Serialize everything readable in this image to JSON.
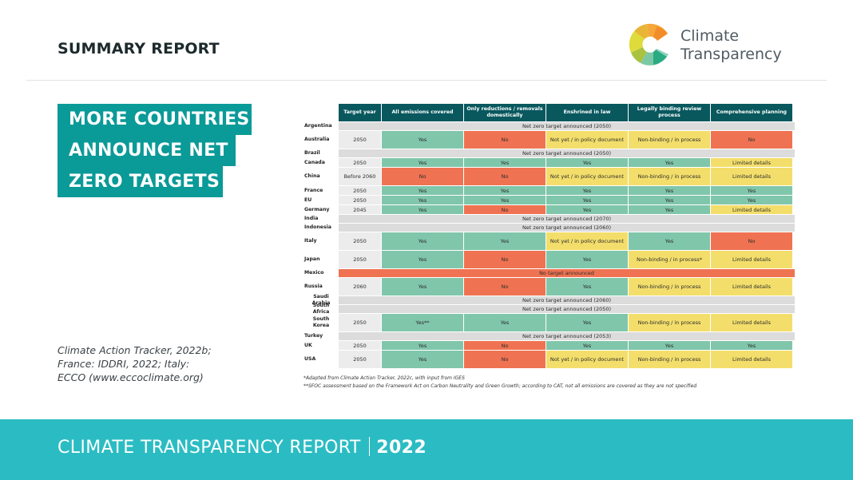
{
  "header": {
    "section_label": "SUMMARY REPORT",
    "logo": {
      "icon": "climate-transparency-logo-mark",
      "line1": "Climate",
      "line2": "Transparency"
    }
  },
  "headline": {
    "lines": [
      "MORE COUNTRIES",
      "ANNOUNCE NET",
      "ZERO TARGETS"
    ]
  },
  "source_note": {
    "lines": [
      "Climate Action Tracker, 2022b;",
      "France: IDDRI, 2022; Italy:",
      "ECCO (www.eccoclimate.org)"
    ]
  },
  "colors": {
    "yes": "#80c6ab",
    "no": "#ef7352",
    "partial": "#f3de6b",
    "announced_only": "#dcdcdc",
    "header": "#08585e",
    "accent": "#0a9a98",
    "footer": "#2bbcc3"
  },
  "table": {
    "columns": [
      "",
      "Target year",
      "All emissions covered",
      "Only reductions / removals domestically",
      "Enshrined in law",
      "Legally binding review process",
      "Comprehensive planning"
    ],
    "rows": [
      {
        "country": "Argentina",
        "span": "Net zero target announced (2050)",
        "span_status": "announced"
      },
      {
        "country": "Australia",
        "tall": true,
        "target_year": "2050",
        "cells": [
          {
            "text": "Yes",
            "status": "yes"
          },
          {
            "text": "No",
            "status": "no"
          },
          {
            "text": "Not yet / in policy document",
            "status": "partial"
          },
          {
            "text": "Non-binding / in process",
            "status": "partial"
          },
          {
            "text": "No",
            "status": "no"
          }
        ]
      },
      {
        "country": "Brazil",
        "span": "Net zero target announced (2050)",
        "span_status": "announced"
      },
      {
        "country": "Canada",
        "target_year": "2050",
        "cells": [
          {
            "text": "Yes",
            "status": "yes"
          },
          {
            "text": "Yes",
            "status": "yes"
          },
          {
            "text": "Yes",
            "status": "yes"
          },
          {
            "text": "Yes",
            "status": "yes"
          },
          {
            "text": "Limited details",
            "status": "partial"
          }
        ]
      },
      {
        "country": "China",
        "tall": true,
        "target_year": "Before 2060",
        "cells": [
          {
            "text": "No",
            "status": "no"
          },
          {
            "text": "No",
            "status": "no"
          },
          {
            "text": "Not yet / in policy document",
            "status": "partial"
          },
          {
            "text": "Non-binding / in process",
            "status": "partial"
          },
          {
            "text": "Limited details",
            "status": "partial"
          }
        ]
      },
      {
        "country": "France",
        "target_year": "2050",
        "cells": [
          {
            "text": "Yes",
            "status": "yes"
          },
          {
            "text": "Yes",
            "status": "yes"
          },
          {
            "text": "Yes",
            "status": "yes"
          },
          {
            "text": "Yes",
            "status": "yes"
          },
          {
            "text": "Yes",
            "status": "yes"
          }
        ]
      },
      {
        "country": "EU",
        "target_year": "2050",
        "cells": [
          {
            "text": "Yes",
            "status": "yes"
          },
          {
            "text": "Yes",
            "status": "yes"
          },
          {
            "text": "Yes",
            "status": "yes"
          },
          {
            "text": "Yes",
            "status": "yes"
          },
          {
            "text": "Yes",
            "status": "yes"
          }
        ]
      },
      {
        "country": "Germany",
        "target_year": "2045",
        "cells": [
          {
            "text": "Yes",
            "status": "yes"
          },
          {
            "text": "No",
            "status": "no"
          },
          {
            "text": "Yes",
            "status": "yes"
          },
          {
            "text": "Yes",
            "status": "yes"
          },
          {
            "text": "Limited details",
            "status": "partial"
          }
        ]
      },
      {
        "country": "India",
        "span": "Net zero target announced (2070)",
        "span_status": "announced"
      },
      {
        "country": "Indonesia",
        "span": "Net zero target announced (2060)",
        "span_status": "announced"
      },
      {
        "country": "Italy",
        "tall": true,
        "target_year": "2050",
        "cells": [
          {
            "text": "Yes",
            "status": "yes"
          },
          {
            "text": "Yes",
            "status": "yes"
          },
          {
            "text": "Not yet / in policy document",
            "status": "partial"
          },
          {
            "text": "Yes",
            "status": "yes"
          },
          {
            "text": "No",
            "status": "no"
          }
        ]
      },
      {
        "country": "Japan",
        "tall": true,
        "target_year": "2050",
        "cells": [
          {
            "text": "Yes",
            "status": "yes"
          },
          {
            "text": "No",
            "status": "no"
          },
          {
            "text": "Yes",
            "status": "yes"
          },
          {
            "text": "Non-binding / in process*",
            "status": "partial"
          },
          {
            "text": "Limited details",
            "status": "partial"
          }
        ]
      },
      {
        "country": "Mexico",
        "span": "No target announced",
        "span_status": "none"
      },
      {
        "country": "Russia",
        "tall": true,
        "target_year": "2060",
        "cells": [
          {
            "text": "Yes",
            "status": "yes"
          },
          {
            "text": "No",
            "status": "no"
          },
          {
            "text": "Yes",
            "status": "yes"
          },
          {
            "text": "Non-binding / in process",
            "status": "partial"
          },
          {
            "text": "Limited details",
            "status": "partial"
          }
        ]
      },
      {
        "country": "Saudi Arabia",
        "span": "Net zero target announced (2060)",
        "span_status": "announced"
      },
      {
        "country": "South Africa",
        "span": "Net zero target announced (2050)",
        "span_status": "announced"
      },
      {
        "country": "South Korea",
        "tall": true,
        "target_year": "2050",
        "cells": [
          {
            "text": "Yes**",
            "status": "yes"
          },
          {
            "text": "Yes",
            "status": "yes"
          },
          {
            "text": "Yes",
            "status": "yes"
          },
          {
            "text": "Non-binding / in process",
            "status": "partial"
          },
          {
            "text": "Limited details",
            "status": "partial"
          }
        ]
      },
      {
        "country": "Turkey",
        "span": "Net zero target announced (2053)",
        "span_status": "announced"
      },
      {
        "country": "UK",
        "target_year": "2050",
        "cells": [
          {
            "text": "Yes",
            "status": "yes"
          },
          {
            "text": "No",
            "status": "no"
          },
          {
            "text": "Yes",
            "status": "yes"
          },
          {
            "text": "Yes",
            "status": "yes"
          },
          {
            "text": "Yes",
            "status": "yes"
          }
        ]
      },
      {
        "country": "USA",
        "tall": true,
        "target_year": "2050",
        "cells": [
          {
            "text": "Yes",
            "status": "yes"
          },
          {
            "text": "No",
            "status": "no"
          },
          {
            "text": "Not yet / in policy document",
            "status": "partial"
          },
          {
            "text": "Non-binding / in process",
            "status": "partial"
          },
          {
            "text": "Limited details",
            "status": "partial"
          }
        ]
      }
    ],
    "footnotes": [
      "*Adapted from Climate Action Tracker, 2022c, with input from IGES",
      "**SFOC assessment based on the Framework Act on Carbon Neutrality and Green Growth; according to CAT, not all emissions are covered as they are not specified"
    ]
  },
  "footer": {
    "title": "CLIMATE TRANSPARENCY REPORT",
    "year": "2022"
  }
}
